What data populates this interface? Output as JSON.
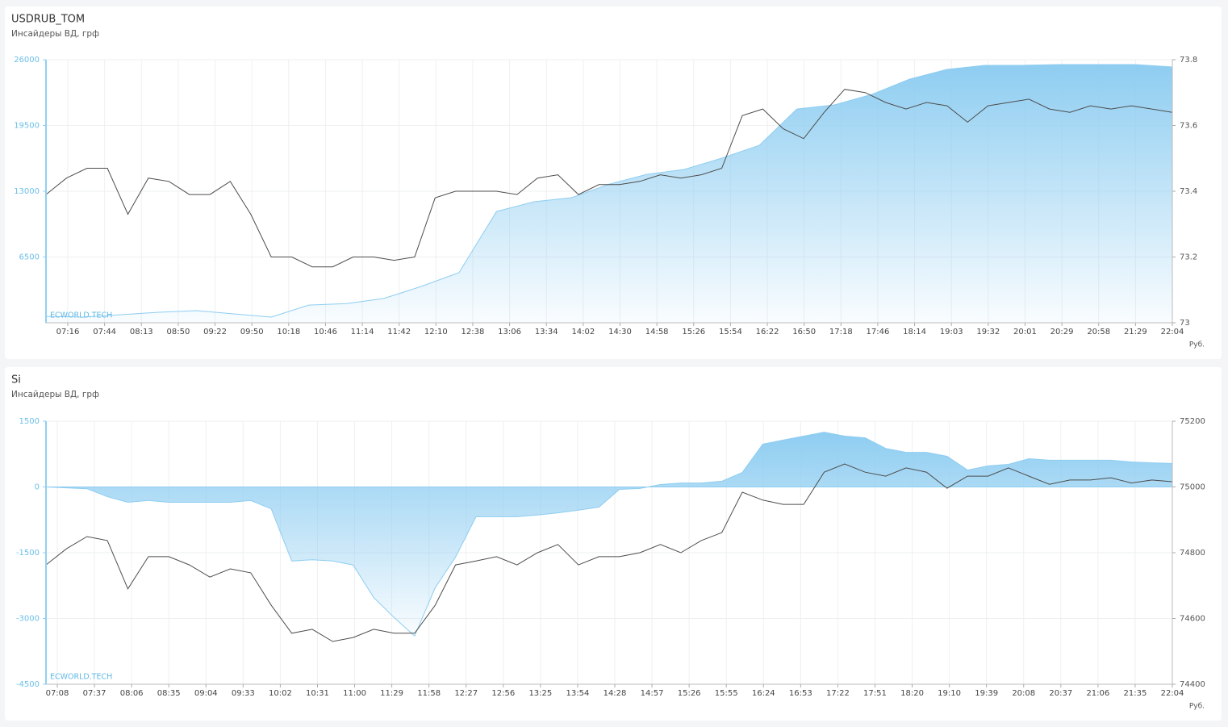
{
  "chart_data": [
    {
      "type": "area-line",
      "title": "USDRUB_TOM",
      "subtitle": "Инсайдеры ВД, грф",
      "watermark": "ECWORLD.TECH",
      "unit_label": "Руб.",
      "grid": true,
      "x_labels": [
        "07:16",
        "07:44",
        "08:13",
        "08:50",
        "09:22",
        "09:50",
        "10:18",
        "10:46",
        "11:14",
        "11:42",
        "12:10",
        "12:38",
        "13:06",
        "13:34",
        "14:02",
        "14:30",
        "14:58",
        "15:26",
        "15:54",
        "16:22",
        "16:50",
        "17:18",
        "17:46",
        "18:14",
        "19:03",
        "19:32",
        "20:01",
        "20:29",
        "20:58",
        "21:29",
        "22:04"
      ],
      "ylim": [
        0,
        26000
      ],
      "yticks": [
        6500,
        13000,
        19500,
        26000
      ],
      "y2lim": [
        73,
        73.8
      ],
      "y2ticks": [
        73,
        73.2,
        73.4,
        73.6,
        73.8
      ],
      "series": [
        {
          "kind": "area",
          "axis": "y",
          "color": "#8ecdf1",
          "values": [
            640,
            560,
            800,
            1040,
            1200,
            880,
            560,
            1750,
            1900,
            2400,
            3600,
            4950,
            11000,
            11960,
            12360,
            13700,
            14670,
            15150,
            16270,
            17540,
            21130,
            21530,
            22570,
            24080,
            25040,
            25440,
            25440,
            25520,
            25520,
            25520,
            25280
          ]
        },
        {
          "kind": "line",
          "axis": "y2",
          "color": "#4d4d4d",
          "values": [
            73.39,
            73.44,
            73.47,
            73.47,
            73.33,
            73.44,
            73.43,
            73.39,
            73.39,
            73.43,
            73.33,
            73.2,
            73.2,
            73.17,
            73.17,
            73.2,
            73.2,
            73.19,
            73.2,
            73.38,
            73.4,
            73.4,
            73.4,
            73.39,
            73.44,
            73.45,
            73.39,
            73.42,
            73.42,
            73.43,
            73.45,
            73.44,
            73.45,
            73.47,
            73.63,
            73.65,
            73.59,
            73.56,
            73.64,
            73.71,
            73.7,
            73.67,
            73.65,
            73.67,
            73.66,
            73.61,
            73.66,
            73.67,
            73.68,
            73.65,
            73.64,
            73.66,
            73.65,
            73.66,
            73.65,
            73.64
          ]
        }
      ]
    },
    {
      "type": "area-line",
      "title": "Si",
      "subtitle": "Инсайдеры ВД, грф",
      "watermark": "ECWORLD.TECH",
      "unit_label": "Руб.",
      "grid": true,
      "x_labels": [
        "07:08",
        "07:37",
        "08:06",
        "08:35",
        "09:04",
        "09:33",
        "10:02",
        "10:31",
        "11:00",
        "11:29",
        "11:58",
        "12:27",
        "12:56",
        "13:25",
        "13:54",
        "14:28",
        "14:57",
        "15:26",
        "15:55",
        "16:24",
        "16:53",
        "17:22",
        "17:51",
        "18:20",
        "19:10",
        "19:39",
        "20:08",
        "20:37",
        "21:06",
        "21:35",
        "22:04"
      ],
      "ylim": [
        -4500,
        1500
      ],
      "yticks": [
        -4500,
        -3000,
        -1500,
        0,
        1500
      ],
      "y2lim": [
        74400,
        75200
      ],
      "y2ticks": [
        74400,
        74600,
        74800,
        75000,
        75200
      ],
      "series": [
        {
          "kind": "area",
          "axis": "y",
          "color": "#8ecdf1",
          "values": [
            0,
            -20,
            -40,
            -220,
            -350,
            -310,
            -350,
            -350,
            -350,
            -350,
            -310,
            -500,
            -1690,
            -1660,
            -1690,
            -1780,
            -2520,
            -2980,
            -3400,
            -2300,
            -1600,
            -680,
            -680,
            -680,
            -640,
            -590,
            -530,
            -460,
            -55,
            -35,
            55,
            90,
            90,
            130,
            330,
            975,
            1070,
            1160,
            1250,
            1160,
            1120,
            880,
            790,
            790,
            700,
            385,
            480,
            515,
            645,
            610,
            610,
            610,
            610,
            570,
            550,
            535
          ]
        },
        {
          "kind": "line",
          "axis": "y2",
          "color": "#4d4d4d",
          "values": [
            74763,
            74812,
            74849,
            74837,
            74690,
            74788,
            74788,
            74763,
            74726,
            74751,
            74739,
            74640,
            74555,
            74567,
            74530,
            74542,
            74567,
            74555,
            74555,
            74640,
            74763,
            74775,
            74788,
            74763,
            74800,
            74825,
            74763,
            74788,
            74788,
            74800,
            74825,
            74800,
            74837,
            74861,
            74984,
            74960,
            74947,
            74947,
            75045,
            75070,
            75045,
            75033,
            75058,
            75045,
            74996,
            75033,
            75033,
            75058,
            75033,
            75008,
            75021,
            75021,
            75028,
            75012,
            75021,
            75016
          ]
        }
      ]
    }
  ]
}
